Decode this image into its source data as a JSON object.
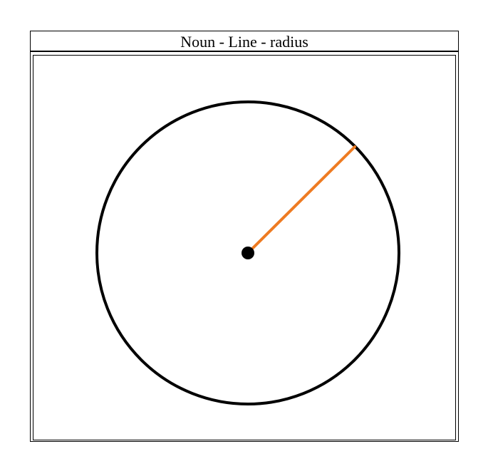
{
  "title": "Noun - Line - radius",
  "colors": {
    "circle_stroke": "#000000",
    "radius_line": "#ee7b22",
    "center_point": "#000000",
    "frame": "#000000",
    "background": "#ffffff"
  },
  "diagram": {
    "shape": "circle",
    "highlighted_element": "radius",
    "radius_direction": "upper-right"
  }
}
